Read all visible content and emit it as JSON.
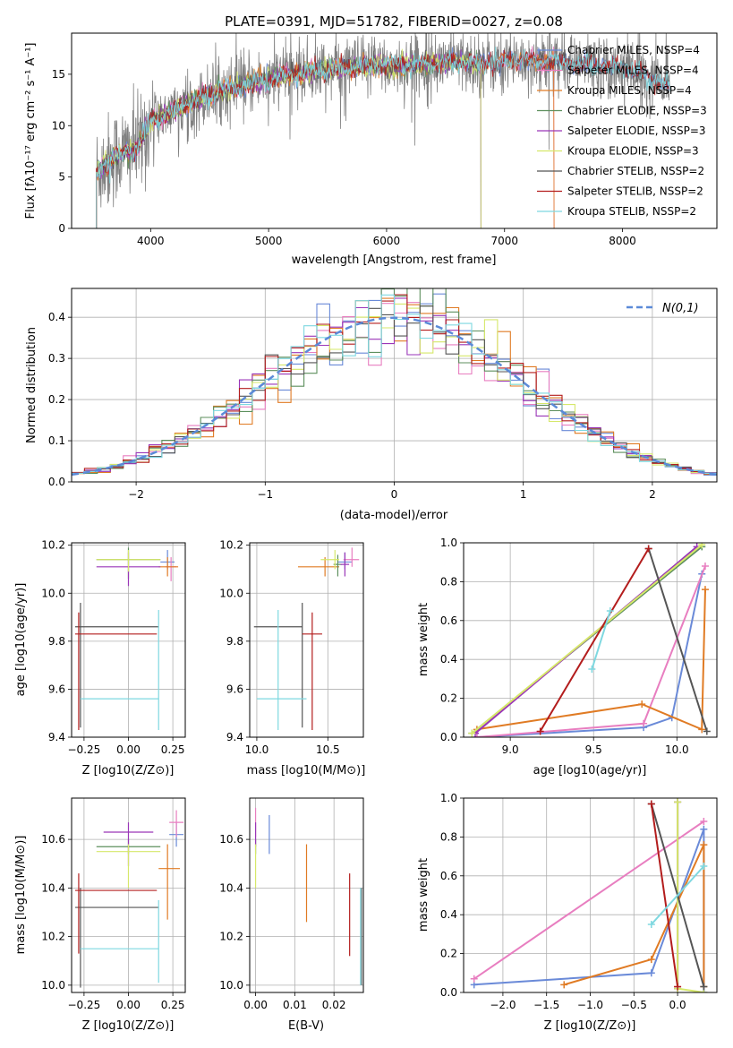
{
  "figure_title": "PLATE=0391, MJD=51782, FIBERID=0027, z=0.08",
  "colors": {
    "Chabrier MILES": "#6a8ad8",
    "Salpeter MILES": "#e87ec0",
    "Kroupa MILES": "#e07b24",
    "Chabrier ELODIE": "#5d8f5d",
    "Salpeter ELODIE": "#9a36b8",
    "Kroupa ELODIE": "#d6e86a",
    "Chabrier STELIB": "#555555",
    "Salpeter STELIB": "#b31d1d",
    "Kroupa STELIB": "#7ed8e0",
    "spectrum": "#808080",
    "gaussian": "#5b8ad8"
  },
  "chart_data": [
    {
      "id": "spectrum",
      "type": "line",
      "title": "PLATE=0391, MJD=51782, FIBERID=0027, z=0.08",
      "xlabel": "wavelength [Angstrom, rest frame]",
      "ylabel": "Flux [fλ10⁻¹⁷ erg cm⁻² s⁻¹ A⁻¹]",
      "xlim": [
        3330,
        8800
      ],
      "ylim": [
        0,
        19
      ],
      "xticks": [
        4000,
        5000,
        6000,
        7000,
        8000
      ],
      "yticks": [
        0,
        5,
        10,
        15
      ],
      "grid": false,
      "legend_position": "lower-right",
      "legend": [
        "Chabrier MILES, NSSP=4",
        "Salpeter MILES, NSSP=4",
        "Kroupa MILES, NSSP=4",
        "Chabrier ELODIE, NSSP=3",
        "Salpeter ELODIE, NSSP=3",
        "Kroupa ELODIE, NSSP=3",
        "Chabrier STELIB, NSSP=2",
        "Salpeter STELIB, NSSP=2",
        "Kroupa STELIB, NSSP=2"
      ],
      "model_continuum": {
        "x": [
          3540,
          3700,
          3900,
          4000,
          4200,
          4500,
          4800,
          5000,
          5200,
          5500,
          5800,
          6000,
          6300,
          6600,
          6800,
          7000,
          7200,
          7400,
          7600,
          8000,
          8400
        ],
        "y": [
          5.5,
          7.0,
          8.0,
          10.5,
          11.5,
          13.0,
          14.0,
          14.5,
          15.0,
          15.5,
          15.8,
          15.8,
          16.0,
          16.2,
          16.0,
          16.3,
          16.4,
          16.3,
          16.0,
          15.7,
          13.8
        ]
      },
      "spectrum_noise_amplitude": 1.5
    },
    {
      "id": "residuals",
      "type": "histogram",
      "xlabel": "(data-model)/error",
      "ylabel": "Normed distribution",
      "xlim": [
        -2.5,
        2.5
      ],
      "ylim": [
        0,
        0.47
      ],
      "xticks": [
        -2,
        -1,
        0,
        1,
        2
      ],
      "yticks": [
        0.0,
        0.1,
        0.2,
        0.3,
        0.4
      ],
      "grid": true,
      "legend_position": "upper-right",
      "legend": [
        "N(0,1)"
      ],
      "bins": 50,
      "bin_range": [
        -2.5,
        2.5
      ]
    },
    {
      "id": "age_vs_Z",
      "type": "errorbar",
      "xlabel": "Z [log10(Z/Z⊙)]",
      "ylabel": "age  [log10(age/yr)]",
      "xlim": [
        -0.32,
        0.32
      ],
      "ylim": [
        9.4,
        10.21
      ],
      "xticks": [
        -0.25,
        0.0,
        0.25
      ],
      "yticks": [
        9.4,
        9.6,
        9.8,
        10.0,
        10.2
      ],
      "grid": true,
      "points": [
        {
          "model": "Chabrier MILES",
          "x": 0.22,
          "xerr": [
            0.04,
            0.04
          ],
          "y": 10.13,
          "yerr": [
            0.03,
            0.05
          ]
        },
        {
          "model": "Salpeter MILES",
          "x": 0.24,
          "xerr": [
            0.03,
            0.03
          ],
          "y": 10.11,
          "yerr": [
            0.06,
            0.04
          ]
        },
        {
          "model": "Kroupa MILES",
          "x": 0.22,
          "xerr": [
            0.05,
            0.06
          ],
          "y": 10.11,
          "yerr": [
            0.04,
            0.04
          ]
        },
        {
          "model": "Chabrier ELODIE",
          "x": 0.0,
          "xerr": [
            0.18,
            0.18
          ],
          "y": 10.14,
          "yerr": [
            0.08,
            0.05
          ]
        },
        {
          "model": "Salpeter ELODIE",
          "x": 0.0,
          "xerr": [
            0.18,
            0.18
          ],
          "y": 10.11,
          "yerr": [
            0.08,
            0.06
          ]
        },
        {
          "model": "Kroupa ELODIE",
          "x": 0.0,
          "xerr": [
            0.18,
            0.18
          ],
          "y": 10.14,
          "yerr": [
            0.05,
            0.04
          ]
        },
        {
          "model": "Chabrier STELIB",
          "x": -0.27,
          "xerr": [
            0.03,
            0.44
          ],
          "y": 9.86,
          "yerr": [
            0.42,
            0.1
          ]
        },
        {
          "model": "Salpeter STELIB",
          "x": -0.28,
          "xerr": [
            0.02,
            0.44
          ],
          "y": 9.83,
          "yerr": [
            0.4,
            0.09
          ]
        },
        {
          "model": "Kroupa STELIB",
          "x": 0.17,
          "xerr": [
            0.44,
            0.0
          ],
          "y": 9.56,
          "yerr": [
            0.13,
            0.37
          ]
        }
      ]
    },
    {
      "id": "age_vs_mass",
      "type": "errorbar",
      "xlabel": "mass [log10(M/M⊙)]",
      "ylabel": "",
      "xlim": [
        9.95,
        10.75
      ],
      "ylim": [
        9.4,
        10.21
      ],
      "xticks": [
        10.0,
        10.5
      ],
      "yticks": [
        9.4,
        9.6,
        9.8,
        10.0,
        10.2
      ],
      "grid": true,
      "points": [
        {
          "model": "Chabrier MILES",
          "x": 10.62,
          "xerr": [
            0.05,
            0.05
          ],
          "y": 10.13,
          "yerr": [
            0.03,
            0.04
          ]
        },
        {
          "model": "Salpeter MILES",
          "x": 10.67,
          "xerr": [
            0.06,
            0.05
          ],
          "y": 10.14,
          "yerr": [
            0.03,
            0.05
          ]
        },
        {
          "model": "Kroupa MILES",
          "x": 10.48,
          "xerr": [
            0.19,
            0.1
          ],
          "y": 10.11,
          "yerr": [
            0.04,
            0.04
          ]
        },
        {
          "model": "Chabrier ELODIE",
          "x": 10.57,
          "xerr": [
            0.03,
            0.03
          ],
          "y": 10.12,
          "yerr": [
            0.05,
            0.04
          ]
        },
        {
          "model": "Salpeter ELODIE",
          "x": 10.62,
          "xerr": [
            0.03,
            0.03
          ],
          "y": 10.12,
          "yerr": [
            0.05,
            0.05
          ]
        },
        {
          "model": "Kroupa ELODIE",
          "x": 10.55,
          "xerr": [
            0.1,
            0.03
          ],
          "y": 10.14,
          "yerr": [
            0.04,
            0.04
          ]
        },
        {
          "model": "Chabrier STELIB",
          "x": 10.32,
          "xerr": [
            0.34,
            0.0
          ],
          "y": 9.86,
          "yerr": [
            0.42,
            0.1
          ]
        },
        {
          "model": "Salpeter STELIB",
          "x": 10.39,
          "xerr": [
            0.07,
            0.07
          ],
          "y": 9.83,
          "yerr": [
            0.4,
            0.09
          ]
        },
        {
          "model": "Kroupa STELIB",
          "x": 10.15,
          "xerr": [
            0.15,
            0.2
          ],
          "y": 9.56,
          "yerr": [
            0.13,
            0.37
          ]
        }
      ]
    },
    {
      "id": "weight_vs_age",
      "type": "line",
      "xlabel": "age  [log10(age/yr)]",
      "ylabel": "mass weight",
      "xlim": [
        8.72,
        10.24
      ],
      "ylim": [
        0,
        1
      ],
      "xticks": [
        9.0,
        9.5,
        10.0
      ],
      "yticks": [
        0.0,
        0.2,
        0.4,
        0.6,
        0.8,
        1.0
      ],
      "grid": true,
      "series": [
        {
          "model": "Chabrier MILES",
          "x": [
            8.8,
            9.8,
            9.97,
            10.15
          ],
          "y": [
            0.0,
            0.05,
            0.1,
            0.84
          ]
        },
        {
          "model": "Salpeter MILES",
          "x": [
            8.8,
            9.8,
            10.17
          ],
          "y": [
            0.0,
            0.07,
            0.88
          ]
        },
        {
          "model": "Kroupa MILES",
          "x": [
            8.8,
            9.79,
            10.15,
            10.17
          ],
          "y": [
            0.04,
            0.17,
            0.04,
            0.76
          ]
        },
        {
          "model": "Chabrier ELODIE",
          "x": [
            8.77,
            10.15
          ],
          "y": [
            0.02,
            0.98
          ]
        },
        {
          "model": "Salpeter ELODIE",
          "x": [
            8.79,
            10.12
          ],
          "y": [
            0.02,
            0.98
          ]
        },
        {
          "model": "Kroupa ELODIE",
          "x": [
            8.77,
            10.15
          ],
          "y": [
            0.02,
            0.99
          ]
        },
        {
          "model": "Chabrier STELIB",
          "x": [
            9.83,
            10.18
          ],
          "y": [
            0.97,
            0.03
          ]
        },
        {
          "model": "Salpeter STELIB",
          "x": [
            9.18,
            9.83
          ],
          "y": [
            0.03,
            0.97
          ]
        },
        {
          "model": "Kroupa STELIB",
          "x": [
            9.49,
            9.6
          ],
          "y": [
            0.35,
            0.65
          ]
        }
      ]
    },
    {
      "id": "mass_vs_Z",
      "type": "errorbar",
      "xlabel": "Z [log10(Z/Z⊙)]",
      "ylabel": "mass [log10(M/M⊙)]",
      "xlim": [
        -0.32,
        0.32
      ],
      "ylim": [
        9.97,
        10.77
      ],
      "xticks": [
        -0.25,
        0.0,
        0.25
      ],
      "yticks": [
        10.0,
        10.2,
        10.4,
        10.6
      ],
      "grid": true,
      "points": [
        {
          "model": "Chabrier MILES",
          "x": 0.27,
          "xerr": [
            0.04,
            0.04
          ],
          "y": 10.62,
          "yerr": [
            0.05,
            0.05
          ]
        },
        {
          "model": "Salpeter MILES",
          "x": 0.27,
          "xerr": [
            0.04,
            0.04
          ],
          "y": 10.67,
          "yerr": [
            0.06,
            0.05
          ]
        },
        {
          "model": "Kroupa MILES",
          "x": 0.22,
          "xerr": [
            0.05,
            0.07
          ],
          "y": 10.48,
          "yerr": [
            0.21,
            0.1
          ]
        },
        {
          "model": "Chabrier ELODIE",
          "x": 0.0,
          "xerr": [
            0.18,
            0.18
          ],
          "y": 10.57,
          "yerr": [
            0.03,
            0.03
          ]
        },
        {
          "model": "Salpeter ELODIE",
          "x": 0.0,
          "xerr": [
            0.14,
            0.14
          ],
          "y": 10.63,
          "yerr": [
            0.14,
            0.04
          ]
        },
        {
          "model": "Kroupa ELODIE",
          "x": 0.0,
          "xerr": [
            0.18,
            0.18
          ],
          "y": 10.55,
          "yerr": [
            0.15,
            0.03
          ]
        },
        {
          "model": "Chabrier STELIB",
          "x": -0.27,
          "xerr": [
            0.03,
            0.44
          ],
          "y": 10.32,
          "yerr": [
            0.33,
            0.08
          ]
        },
        {
          "model": "Salpeter STELIB",
          "x": -0.28,
          "xerr": [
            0.02,
            0.44
          ],
          "y": 10.39,
          "yerr": [
            0.26,
            0.07
          ]
        },
        {
          "model": "Kroupa STELIB",
          "x": 0.17,
          "xerr": [
            0.44,
            0.0
          ],
          "y": 10.15,
          "yerr": [
            0.14,
            0.2
          ]
        }
      ]
    },
    {
      "id": "mass_vs_EBV",
      "type": "errorbar",
      "xlabel": "E(B-V)",
      "ylabel": "",
      "xlim": [
        -0.0015,
        0.0275
      ],
      "ylim": [
        9.97,
        10.77
      ],
      "xticks": [
        0.0,
        0.01,
        0.02
      ],
      "yticks": [
        10.0,
        10.2,
        10.4,
        10.6
      ],
      "grid": true,
      "points": [
        {
          "model": "Chabrier MILES",
          "x": 0.0035,
          "y": 10.62,
          "yerr": [
            0.08,
            0.08
          ]
        },
        {
          "model": "Salpeter MILES",
          "x": 0.0,
          "y": 10.67,
          "yerr": [
            0.06,
            0.06
          ]
        },
        {
          "model": "Kroupa MILES",
          "x": 0.013,
          "y": 10.42,
          "yerr": [
            0.16,
            0.16
          ]
        },
        {
          "model": "Chabrier ELODIE",
          "x": 0.0,
          "y": 10.57,
          "yerr": [
            0.03,
            0.03
          ]
        },
        {
          "model": "Salpeter ELODIE",
          "x": 0.0,
          "y": 10.62,
          "yerr": [
            0.05,
            0.05
          ]
        },
        {
          "model": "Kroupa ELODIE",
          "x": 0.0,
          "y": 10.55,
          "yerr": [
            0.15,
            0.03
          ]
        },
        {
          "model": "Chabrier STELIB",
          "x": 0.027,
          "y": 10.2,
          "yerr": [
            0.2,
            0.2
          ]
        },
        {
          "model": "Salpeter STELIB",
          "x": 0.024,
          "y": 10.29,
          "yerr": [
            0.17,
            0.17
          ]
        },
        {
          "model": "Kroupa STELIB",
          "x": 0.0268,
          "y": 10.2,
          "yerr": [
            0.2,
            0.2
          ]
        }
      ]
    },
    {
      "id": "weight_vs_Z",
      "type": "line",
      "xlabel": "Z [log10(Z/Z⊙)]",
      "ylabel": "mass weight",
      "xlim": [
        -2.45,
        0.45
      ],
      "ylim": [
        0,
        1
      ],
      "xticks": [
        -2.0,
        -1.5,
        -1.0,
        -0.5,
        0.0
      ],
      "yticks": [
        0.0,
        0.2,
        0.4,
        0.6,
        0.8,
        1.0
      ],
      "grid": true,
      "series": [
        {
          "model": "Chabrier MILES",
          "x": [
            -2.33,
            -0.3,
            0.3,
            0.3
          ],
          "y": [
            0.04,
            0.1,
            0.84,
            0.0
          ]
        },
        {
          "model": "Salpeter MILES",
          "x": [
            -2.33,
            0.3
          ],
          "y": [
            0.07,
            0.88
          ]
        },
        {
          "model": "Kroupa MILES",
          "x": [
            -1.3,
            -0.3,
            0.3,
            0.3
          ],
          "y": [
            0.04,
            0.17,
            0.76,
            0.03
          ]
        },
        {
          "model": "Chabrier ELODIE",
          "x": [
            0.0,
            0.0
          ],
          "y": [
            0.98,
            0.02
          ]
        },
        {
          "model": "Salpeter ELODIE",
          "x": [
            0.0,
            0.0
          ],
          "y": [
            0.98,
            0.02
          ]
        },
        {
          "model": "Kroupa ELODIE",
          "x": [
            0.0,
            0.0,
            0.3
          ],
          "y": [
            0.98,
            0.02,
            0.0
          ]
        },
        {
          "model": "Chabrier STELIB",
          "x": [
            -0.3,
            0.3
          ],
          "y": [
            0.97,
            0.03
          ]
        },
        {
          "model": "Salpeter STELIB",
          "x": [
            -0.3,
            0.0
          ],
          "y": [
            0.97,
            0.03
          ]
        },
        {
          "model": "Kroupa STELIB",
          "x": [
            -0.3,
            0.3
          ],
          "y": [
            0.35,
            0.65
          ]
        }
      ]
    }
  ]
}
